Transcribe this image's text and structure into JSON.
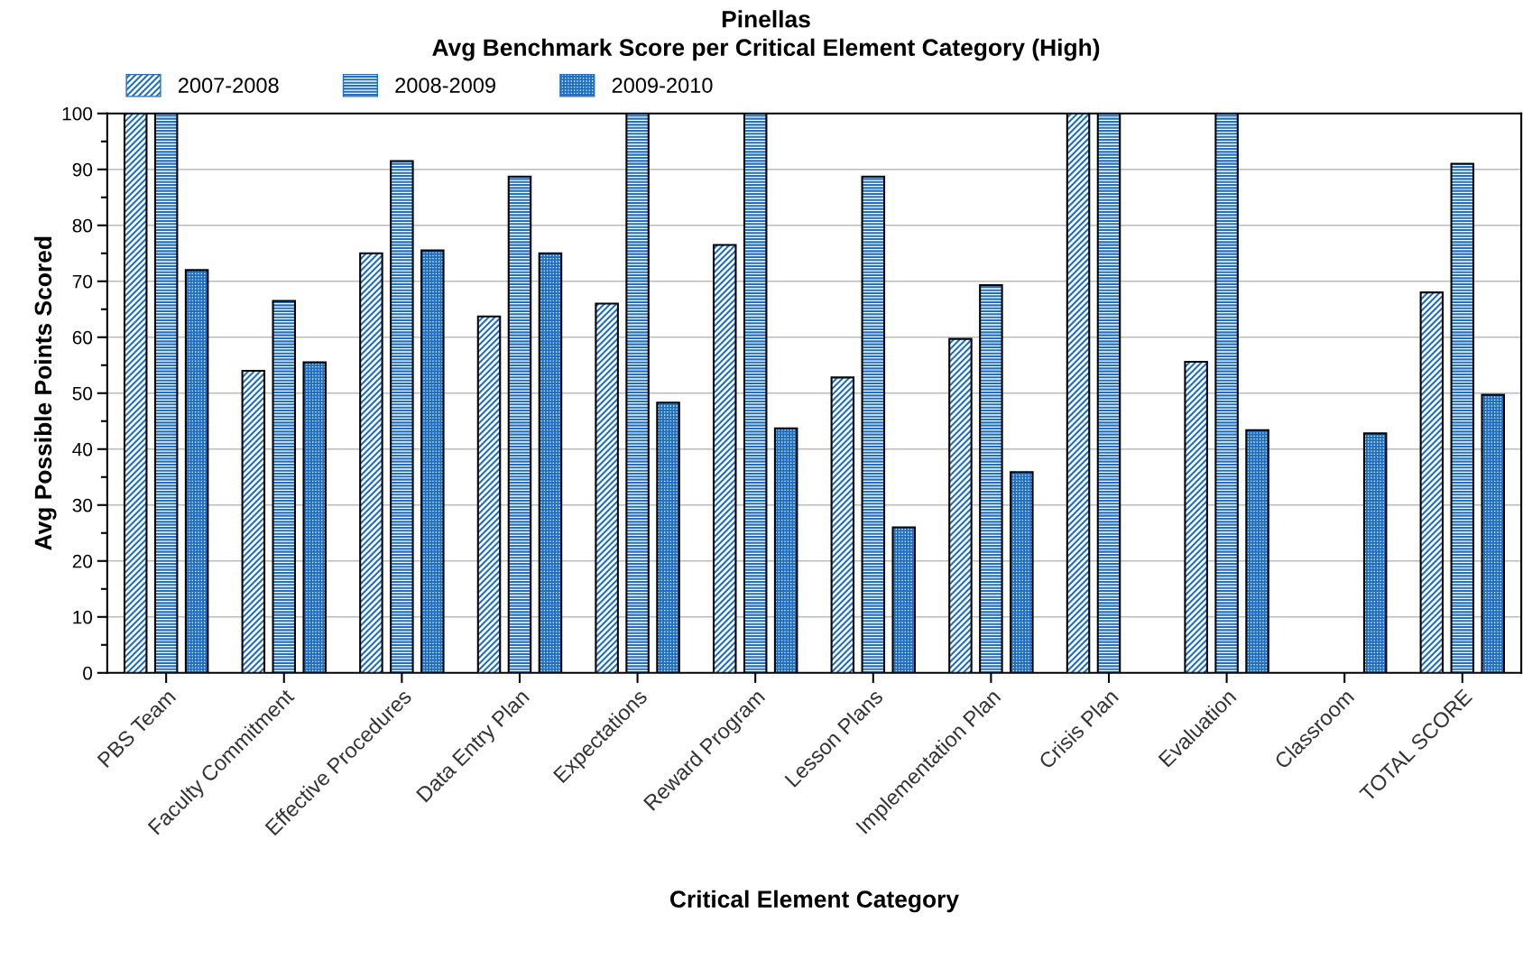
{
  "chart_data": {
    "type": "bar",
    "title": "Pinellas",
    "subtitle": "Avg Benchmark Score per Critical Element Category (High)",
    "xlabel": "Critical Element Category",
    "ylabel": "Avg Possible Points Scored",
    "categories": [
      "PBS Team",
      "Faculty Commitment",
      "Effective Procedures",
      "Data Entry Plan",
      "Expectations",
      "Reward Program",
      "Lesson Plans",
      "Implementation Plan",
      "Crisis Plan",
      "Evaluation",
      "Classroom",
      "TOTAL SCORE"
    ],
    "series": [
      {
        "name": "2007-2008",
        "color": "#1f6fc4",
        "values": [
          100,
          54,
          75,
          63.7,
          66,
          76.5,
          52.8,
          59.7,
          100,
          55.6,
          null,
          68
        ]
      },
      {
        "name": "2008-2009",
        "color": "#1f6fc4",
        "values": [
          100,
          66.5,
          91.5,
          88.7,
          100,
          100,
          88.7,
          69.3,
          100,
          100,
          null,
          91
        ]
      },
      {
        "name": "2009-2010",
        "color": "#1f6fc4",
        "values": [
          72,
          55.5,
          75.5,
          75,
          48.3,
          43.7,
          26,
          35.9,
          null,
          43.4,
          42.8,
          49.7
        ]
      }
    ],
    "ylim": [
      0,
      100
    ],
    "yticks": [
      0,
      10,
      20,
      30,
      40,
      50,
      60,
      70,
      80,
      90,
      100
    ],
    "grid": "y",
    "legend": "top left"
  }
}
